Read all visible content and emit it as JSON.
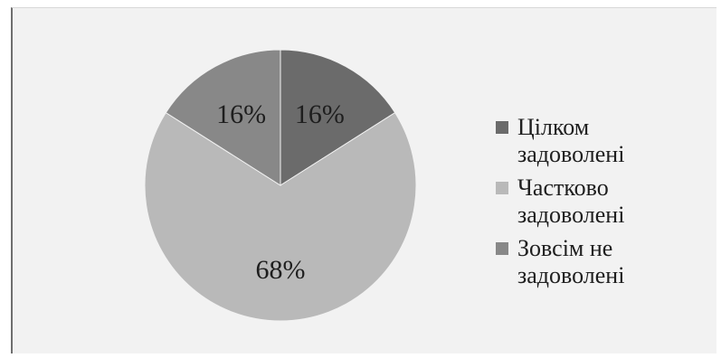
{
  "chart_data": {
    "type": "pie",
    "slices": [
      {
        "label": "Цілком задоволені",
        "value": 16,
        "display": "16%",
        "color": "#6b6b6b"
      },
      {
        "label": "Частково задоволені",
        "value": 68,
        "display": "68%",
        "color": "#b9b9b9"
      },
      {
        "label": "Зовсім не задоволені",
        "value": 16,
        "display": "16%",
        "color": "#888888"
      }
    ],
    "legend_position": "right"
  }
}
